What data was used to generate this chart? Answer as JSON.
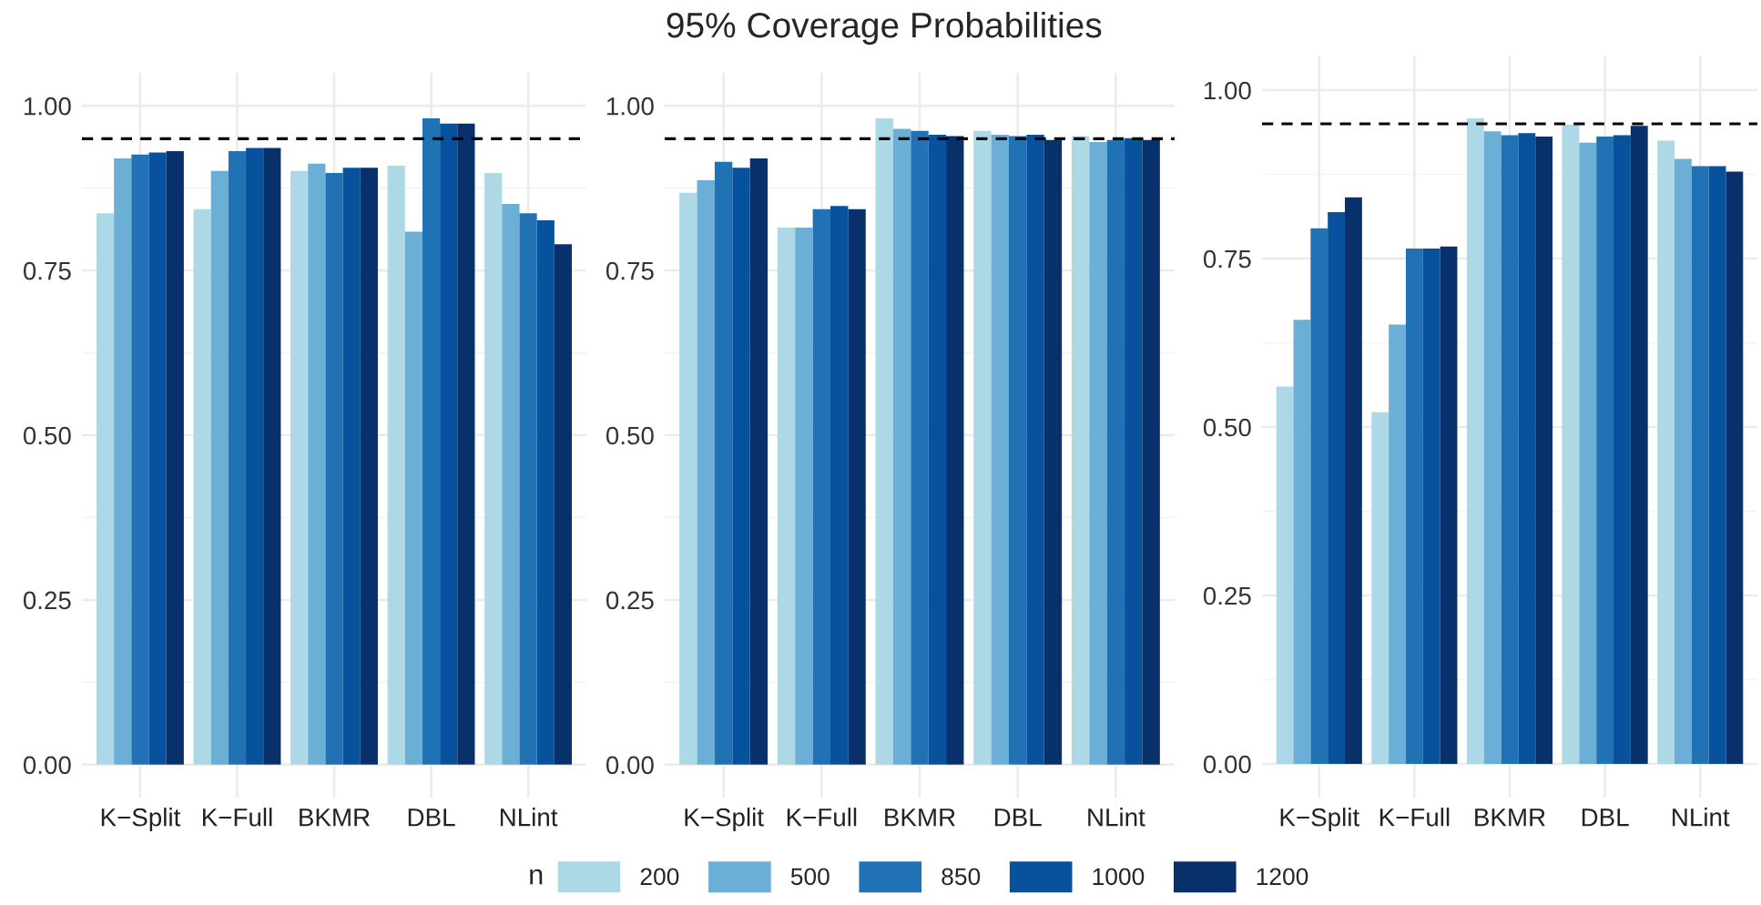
{
  "chart_data": [
    {
      "type": "bar",
      "legend_title": "n",
      "legend": "bottom",
      "grid": true,
      "categories": [
        "K−Split",
        "K−Full",
        "BKMR",
        "DBL",
        "NLint"
      ],
      "ylim": [
        -0.05,
        1.05
      ],
      "yticks": [
        {
          "value": 0,
          "label": "0.00"
        },
        {
          "value": 0.25,
          "label": "0.25"
        },
        {
          "value": 0.5,
          "label": "0.50"
        },
        {
          "value": 0.75,
          "label": "0.75"
        },
        {
          "value": 1,
          "label": "1.00"
        }
      ],
      "ref_lines": [
        {
          "axis": "y",
          "value": 0.95,
          "color": "#000000",
          "line_style": "dashed"
        }
      ],
      "series": [
        {
          "name": "200",
          "color": "#add8e6",
          "values": [
            0.837,
            0.843,
            0.901,
            0.909,
            0.898
          ]
        },
        {
          "name": "500",
          "color": "#6baed6",
          "values": [
            0.92,
            0.901,
            0.912,
            0.809,
            0.851
          ]
        },
        {
          "name": "850",
          "color": "#2171b5",
          "values": [
            0.926,
            0.931,
            0.898,
            0.981,
            0.837
          ]
        },
        {
          "name": "1000",
          "color": "#08519c",
          "values": [
            0.929,
            0.936,
            0.906,
            0.973,
            0.826
          ]
        },
        {
          "name": "1200",
          "color": "#08306b",
          "values": [
            0.931,
            0.936,
            0.906,
            0.973,
            0.79
          ]
        }
      ]
    },
    {
      "type": "bar",
      "title": "95% Coverage Probabilities",
      "grid": true,
      "categories": [
        "K−Split",
        "K−Full",
        "BKMR",
        "DBL",
        "NLint"
      ],
      "ylim": [
        -0.05,
        1.05
      ],
      "yticks": [
        {
          "value": 0,
          "label": "0.00"
        },
        {
          "value": 0.25,
          "label": "0.25"
        },
        {
          "value": 0.5,
          "label": "0.50"
        },
        {
          "value": 0.75,
          "label": "0.75"
        },
        {
          "value": 1,
          "label": "1.00"
        }
      ],
      "ref_lines": [
        {
          "axis": "y",
          "value": 0.95,
          "color": "#000000",
          "line_style": "dashed"
        }
      ],
      "series": [
        {
          "name": "200",
          "color": "#add8e6",
          "values": [
            0.868,
            0.815,
            0.981,
            0.962,
            0.954
          ]
        },
        {
          "name": "500",
          "color": "#6baed6",
          "values": [
            0.887,
            0.815,
            0.965,
            0.956,
            0.945
          ]
        },
        {
          "name": "850",
          "color": "#2171b5",
          "values": [
            0.915,
            0.843,
            0.962,
            0.954,
            0.948
          ]
        },
        {
          "name": "1000",
          "color": "#08519c",
          "values": [
            0.906,
            0.848,
            0.956,
            0.956,
            0.951
          ]
        },
        {
          "name": "1200",
          "color": "#08306b",
          "values": [
            0.92,
            0.843,
            0.954,
            0.948,
            0.948
          ]
        }
      ]
    },
    {
      "type": "bar",
      "grid": true,
      "categories": [
        "K−Split",
        "K−Full",
        "BKMR",
        "DBL",
        "NLint"
      ],
      "ylim": [
        -0.05,
        1.05
      ],
      "yticks": [
        {
          "value": 0,
          "label": "0.00"
        },
        {
          "value": 0.25,
          "label": "0.25"
        },
        {
          "value": 0.5,
          "label": "0.50"
        },
        {
          "value": 0.75,
          "label": "0.75"
        },
        {
          "value": 1,
          "label": "1.00"
        }
      ],
      "ref_lines": [
        {
          "axis": "y",
          "value": 0.95,
          "color": "#000000",
          "line_style": "dashed"
        }
      ],
      "series": [
        {
          "name": "200",
          "color": "#add8e6",
          "values": [
            0.56,
            0.522,
            0.958,
            0.949,
            0.925
          ]
        },
        {
          "name": "500",
          "color": "#6baed6",
          "values": [
            0.659,
            0.652,
            0.939,
            0.922,
            0.898
          ]
        },
        {
          "name": "850",
          "color": "#2171b5",
          "values": [
            0.795,
            0.765,
            0.933,
            0.931,
            0.887
          ]
        },
        {
          "name": "1000",
          "color": "#08519c",
          "values": [
            0.819,
            0.765,
            0.936,
            0.933,
            0.887
          ]
        },
        {
          "name": "1200",
          "color": "#08306b",
          "values": [
            0.841,
            0.768,
            0.931,
            0.947,
            0.879
          ]
        }
      ]
    }
  ]
}
